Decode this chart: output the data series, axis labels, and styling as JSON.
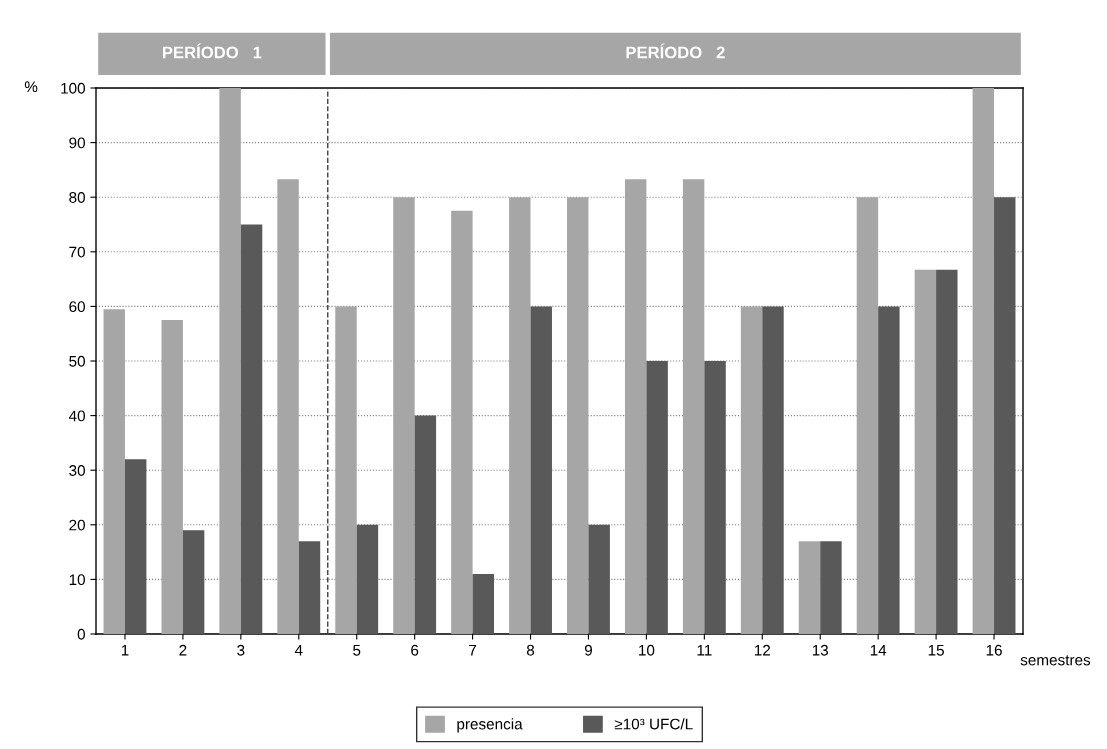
{
  "chart_data": {
    "type": "bar",
    "xlabel": "semestres",
    "ylabel": "%",
    "x": [
      1,
      2,
      3,
      4,
      5,
      6,
      7,
      8,
      9,
      10,
      11,
      12,
      13,
      14,
      15,
      16
    ],
    "series": [
      {
        "name": "presencia",
        "color": "#a6a6a6",
        "values": [
          59.5,
          57.5,
          100,
          83.3,
          60,
          80,
          77.5,
          80,
          80,
          83.3,
          83.3,
          60,
          17,
          80,
          66.7,
          100
        ]
      },
      {
        "name": "≥10³ UFC/L",
        "color": "#595959",
        "values": [
          32,
          19,
          75,
          17,
          20,
          40,
          11,
          60,
          20,
          50,
          50,
          60,
          17,
          60,
          66.7,
          80
        ]
      }
    ],
    "xlim": [
      0.5,
      16.5
    ],
    "xticks": [
      1,
      2,
      3,
      4,
      5,
      6,
      7,
      8,
      9,
      10,
      11,
      12,
      13,
      14,
      15,
      16
    ],
    "ylim": [
      0,
      100
    ],
    "yticks": [
      0,
      10,
      20,
      30,
      40,
      50,
      60,
      70,
      80,
      90,
      100
    ],
    "ref_lines": [
      {
        "axis": "x",
        "value": 4.5,
        "line_style": "dashed",
        "color": "#404040"
      }
    ],
    "annotations": [
      "PERÍODO   1",
      "PERÍODO   2"
    ],
    "grid": "y",
    "legend": "bottom"
  }
}
